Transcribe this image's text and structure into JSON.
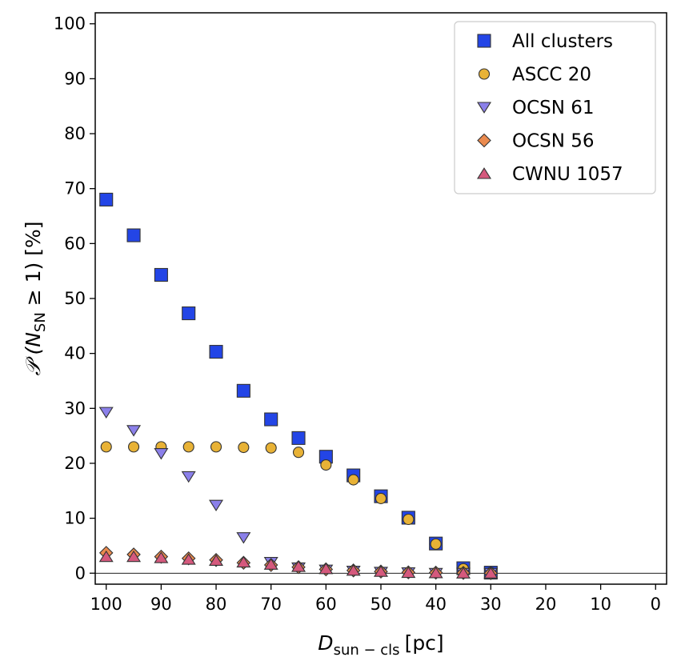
{
  "chart_data": {
    "type": "scatter",
    "title": "",
    "x_label_main": "D",
    "x_label_sub": "sun − cls",
    "x_label_unit": "[pc]",
    "y_label_prefix": "𝒫 (",
    "y_label_var": "N",
    "y_label_sub": "SN",
    "y_label_rest": " ≥ 1) [%]",
    "xlim": [
      102,
      -2
    ],
    "ylim": [
      -2,
      102
    ],
    "x_ticks": [
      100,
      90,
      80,
      70,
      60,
      50,
      40,
      30,
      20,
      10,
      0
    ],
    "y_ticks": [
      0,
      10,
      20,
      30,
      40,
      50,
      60,
      70,
      80,
      90,
      100
    ],
    "hline_y": 0,
    "grid": false,
    "legend_position": "top-right",
    "series": [
      {
        "name": "All clusters",
        "marker": "square",
        "color": "#2345e6",
        "x": [
          100,
          95,
          90,
          85,
          80,
          75,
          70,
          65,
          60,
          55,
          50,
          45,
          40,
          35,
          30
        ],
        "y": [
          68.0,
          61.5,
          54.3,
          47.3,
          40.3,
          33.2,
          28.0,
          24.6,
          21.2,
          17.8,
          14.0,
          10.1,
          5.4,
          0.9,
          0.1
        ]
      },
      {
        "name": "ASCC 20",
        "marker": "circle",
        "color": "#e8b236",
        "x": [
          100,
          95,
          90,
          85,
          80,
          75,
          70,
          65,
          60,
          55,
          50,
          45,
          40,
          35,
          30
        ],
        "y": [
          23.0,
          23.0,
          23.0,
          23.0,
          23.0,
          22.9,
          22.8,
          22.0,
          19.7,
          17.0,
          13.6,
          9.8,
          5.3,
          0.8,
          0.1
        ]
      },
      {
        "name": "OCSN 61",
        "marker": "triangle-down",
        "color": "#8b80ea",
        "x": [
          100,
          95,
          90,
          85,
          80,
          75,
          70,
          65,
          60,
          55,
          50,
          45,
          40,
          35,
          30
        ],
        "y": [
          29.3,
          26.0,
          21.8,
          17.6,
          12.4,
          6.5,
          2.0,
          1.0,
          0.6,
          0.4,
          0.2,
          0.1,
          0.0,
          0.0,
          0.0
        ]
      },
      {
        "name": "OCSN 56",
        "marker": "diamond",
        "color": "#ea8a4e",
        "x": [
          100,
          95,
          90,
          85,
          80,
          75,
          70,
          65,
          60,
          55,
          50,
          45,
          40,
          35,
          30
        ],
        "y": [
          3.7,
          3.4,
          3.0,
          2.7,
          2.4,
          1.9,
          1.5,
          1.1,
          0.7,
          0.5,
          0.3,
          0.15,
          0.1,
          0.05,
          0.0
        ]
      },
      {
        "name": "CWNU 1057",
        "marker": "triangle-up",
        "color": "#d5597d",
        "x": [
          100,
          95,
          90,
          85,
          80,
          75,
          70,
          65,
          60,
          55,
          50,
          45,
          40,
          35,
          30
        ],
        "y": [
          3.0,
          3.0,
          2.8,
          2.5,
          2.3,
          2.0,
          1.6,
          1.2,
          0.8,
          0.5,
          0.3,
          0.1,
          0.05,
          0.0,
          0.0
        ]
      }
    ]
  }
}
